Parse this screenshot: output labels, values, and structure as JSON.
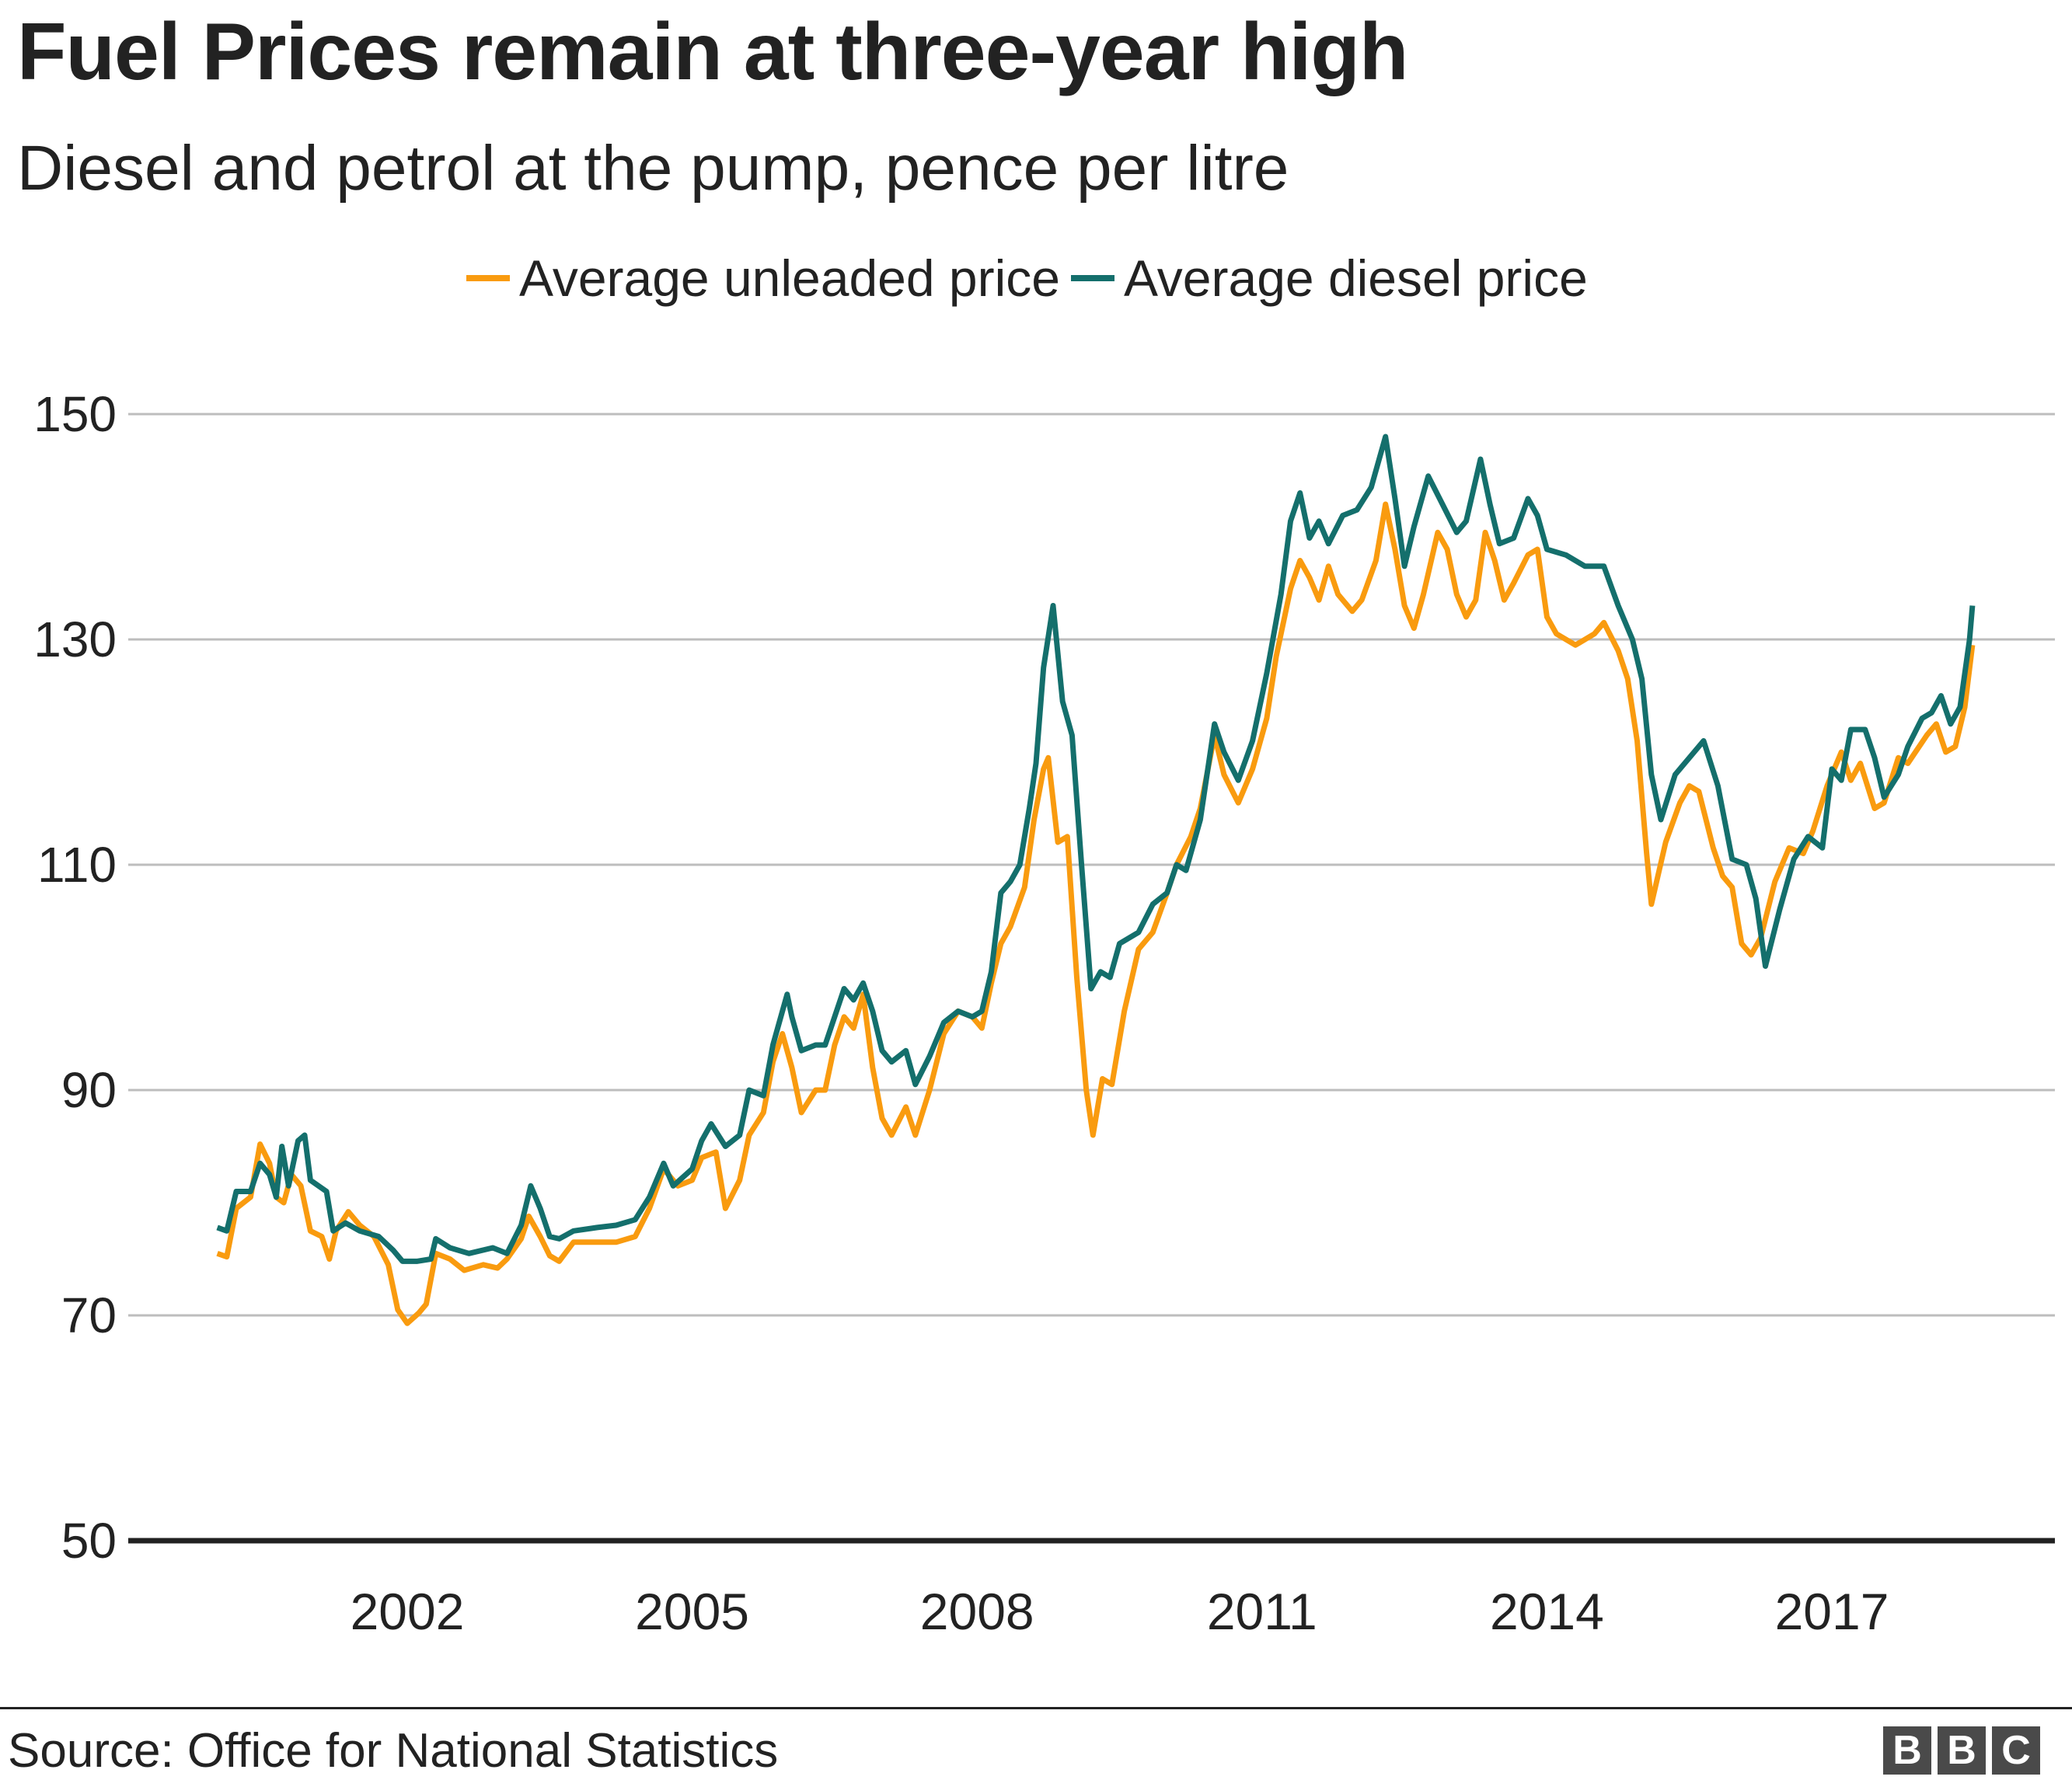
{
  "header": {
    "title": "Fuel Prices remain at three-year high",
    "subtitle": "Diesel and petrol at the pump, pence per litre"
  },
  "footer": {
    "source": "Source: Office for National Statistics",
    "logo": "BBC"
  },
  "colors": {
    "unleaded": "#F99B0F",
    "diesel": "#146F6C",
    "grid": "#BDBDBD",
    "baseline": "#222222"
  },
  "chart_data": {
    "type": "line",
    "title": "Fuel Prices remain at three-year high",
    "subtitle": "Diesel and petrol at the pump, pence per litre",
    "xlabel": "",
    "ylabel": "",
    "xlim": [
      2000,
      2018.5
    ],
    "ylim": [
      50,
      150
    ],
    "yticks": [
      50,
      70,
      90,
      110,
      130,
      150
    ],
    "xticks": [
      2002,
      2005,
      2008,
      2011,
      2014,
      2017
    ],
    "grid": "horizontal",
    "legend": "top",
    "series": [
      {
        "name": "Average unleaded price",
        "color": "#F99B0F",
        "x": [
          2000.0,
          2000.1,
          2000.2,
          2000.35,
          2000.45,
          2000.55,
          2000.62,
          2000.7,
          2000.78,
          2000.88,
          2000.98,
          2001.1,
          2001.18,
          2001.25,
          2001.38,
          2001.5,
          2001.65,
          2001.8,
          2001.9,
          2002.0,
          2002.12,
          2002.2,
          2002.3,
          2002.45,
          2002.6,
          2002.8,
          2002.95,
          2003.05,
          2003.2,
          2003.28,
          2003.4,
          2003.5,
          2003.6,
          2003.75,
          2004.0,
          2004.2,
          2004.4,
          2004.55,
          2004.7,
          2004.85,
          2005.0,
          2005.1,
          2005.25,
          2005.35,
          2005.5,
          2005.6,
          2005.75,
          2005.85,
          2005.95,
          2006.05,
          2006.15,
          2006.3,
          2006.4,
          2006.5,
          2006.6,
          2006.7,
          2006.8,
          2006.9,
          2007.0,
          2007.1,
          2007.25,
          2007.35,
          2007.5,
          2007.65,
          2007.8,
          2007.95,
          2008.05,
          2008.15,
          2008.25,
          2008.35,
          2008.5,
          2008.6,
          2008.7,
          2008.75,
          2008.85,
          2008.95,
          2009.05,
          2009.15,
          2009.22,
          2009.32,
          2009.42,
          2009.55,
          2009.7,
          2009.85,
          2010.0,
          2010.1,
          2010.25,
          2010.35,
          2010.5,
          2010.6,
          2010.75,
          2010.9,
          2011.05,
          2011.15,
          2011.3,
          2011.4,
          2011.5,
          2011.6,
          2011.7,
          2011.8,
          2011.95,
          2012.05,
          2012.2,
          2012.3,
          2012.4,
          2012.5,
          2012.6,
          2012.7,
          2012.85,
          2012.95,
          2013.05,
          2013.15,
          2013.25,
          2013.35,
          2013.45,
          2013.55,
          2013.65,
          2013.8,
          2013.9,
          2014.0,
          2014.1,
          2014.3,
          2014.5,
          2014.6,
          2014.75,
          2014.85,
          2014.95,
          2015.05,
          2015.1,
          2015.25,
          2015.4,
          2015.5,
          2015.6,
          2015.75,
          2015.85,
          2015.95,
          2016.05,
          2016.15,
          2016.25,
          2016.4,
          2016.55,
          2016.7,
          2016.8,
          2016.95,
          2017.1,
          2017.2,
          2017.3,
          2017.45,
          2017.55,
          2017.7,
          2017.8,
          2018.0,
          2018.1,
          2018.2,
          2018.3,
          2018.4,
          2018.48
        ],
        "values": [
          75.5,
          75.2,
          79.5,
          80.5,
          85.2,
          83.5,
          80.5,
          80.0,
          82.5,
          81.5,
          77.5,
          77.0,
          75.0,
          77.5,
          79.2,
          78.0,
          77.0,
          74.5,
          70.5,
          69.3,
          70.2,
          71.0,
          75.5,
          75.0,
          74.0,
          74.5,
          74.2,
          75.0,
          76.8,
          78.8,
          77.0,
          75.3,
          74.8,
          76.5,
          76.5,
          76.5,
          77.0,
          79.5,
          83.0,
          81.5,
          82.0,
          84.0,
          84.5,
          79.5,
          82.0,
          86.0,
          88.0,
          92.5,
          95.0,
          92.0,
          88.0,
          90.0,
          90.0,
          94.0,
          96.5,
          95.5,
          98.5,
          92.0,
          87.5,
          86.0,
          88.5,
          86.0,
          90.0,
          95.0,
          97.0,
          96.5,
          95.5,
          99.5,
          103.0,
          104.5,
          108.0,
          114.0,
          118.5,
          119.5,
          112.0,
          112.5,
          100.0,
          90.0,
          86.0,
          91.0,
          90.5,
          97.0,
          102.5,
          104.0,
          107.5,
          110.0,
          112.5,
          115.0,
          121.5,
          118.0,
          115.5,
          118.5,
          123.0,
          128.5,
          134.5,
          137.0,
          135.5,
          133.5,
          136.5,
          134.0,
          132.5,
          133.5,
          137.0,
          142.0,
          138.0,
          133.0,
          131.0,
          134.0,
          139.5,
          138.0,
          134.0,
          132.0,
          133.5,
          139.5,
          137.0,
          133.5,
          135.0,
          137.5,
          138.0,
          132.0,
          130.5,
          129.5,
          130.5,
          131.5,
          129.0,
          126.5,
          121.0,
          111.0,
          106.5,
          112.0,
          115.5,
          117.0,
          116.5,
          111.5,
          109.0,
          108.0,
          103.0,
          102.0,
          103.5,
          108.5,
          111.5,
          111.0,
          113.0,
          117.0,
          120.0,
          117.5,
          119.0,
          115.0,
          115.5,
          119.5,
          119.0,
          121.5,
          122.5,
          120.0,
          120.5,
          124.0,
          129.5
        ]
      },
      {
        "name": "Average diesel price",
        "color": "#146F6C",
        "x": [
          2000.0,
          2000.1,
          2000.2,
          2000.35,
          2000.45,
          2000.55,
          2000.62,
          2000.68,
          2000.75,
          2000.85,
          2000.92,
          2000.98,
          2001.15,
          2001.22,
          2001.35,
          2001.5,
          2001.7,
          2001.85,
          2001.95,
          2002.1,
          2002.25,
          2002.3,
          2002.45,
          2002.65,
          2002.9,
          2003.05,
          2003.2,
          2003.3,
          2003.4,
          2003.5,
          2003.6,
          2003.75,
          2004.0,
          2004.2,
          2004.4,
          2004.55,
          2004.7,
          2004.8,
          2005.0,
          2005.1,
          2005.2,
          2005.35,
          2005.5,
          2005.6,
          2005.75,
          2005.85,
          2005.95,
          2006.0,
          2006.05,
          2006.15,
          2006.3,
          2006.4,
          2006.5,
          2006.6,
          2006.7,
          2006.8,
          2006.9,
          2007.0,
          2007.1,
          2007.25,
          2007.35,
          2007.5,
          2007.65,
          2007.8,
          2007.95,
          2008.05,
          2008.15,
          2008.25,
          2008.35,
          2008.45,
          2008.55,
          2008.62,
          2008.7,
          2008.8,
          2008.9,
          2009.0,
          2009.1,
          2009.2,
          2009.3,
          2009.4,
          2009.5,
          2009.7,
          2009.85,
          2010.0,
          2010.1,
          2010.2,
          2010.35,
          2010.5,
          2010.6,
          2010.75,
          2010.9,
          2011.05,
          2011.2,
          2011.3,
          2011.4,
          2011.5,
          2011.6,
          2011.7,
          2011.85,
          2012.0,
          2012.15,
          2012.3,
          2012.4,
          2012.5,
          2012.6,
          2012.75,
          2012.9,
          2013.05,
          2013.15,
          2013.3,
          2013.4,
          2013.5,
          2013.65,
          2013.8,
          2013.9,
          2014.0,
          2014.2,
          2014.4,
          2014.6,
          2014.75,
          2014.9,
          2015.0,
          2015.1,
          2015.2,
          2015.35,
          2015.5,
          2015.65,
          2015.8,
          2015.95,
          2016.1,
          2016.2,
          2016.3,
          2016.45,
          2016.6,
          2016.75,
          2016.9,
          2017.0,
          2017.1,
          2017.2,
          2017.35,
          2017.45,
          2017.55,
          2017.7,
          2017.8,
          2017.95,
          2018.05,
          2018.15,
          2018.25,
          2018.35,
          2018.45,
          2018.48
        ],
        "values": [
          77.8,
          77.5,
          81.0,
          81.0,
          83.5,
          82.5,
          80.5,
          85.0,
          81.5,
          85.5,
          86.0,
          82.0,
          81.0,
          77.5,
          78.2,
          77.5,
          77.0,
          75.8,
          74.8,
          74.8,
          75.0,
          76.8,
          76.0,
          75.5,
          76.0,
          75.5,
          78.0,
          81.5,
          79.5,
          77.0,
          76.8,
          77.5,
          77.8,
          78.0,
          78.5,
          80.5,
          83.5,
          81.5,
          83.0,
          85.5,
          87.0,
          85.0,
          86.0,
          90.0,
          89.5,
          94.0,
          97.0,
          98.5,
          96.5,
          93.5,
          94.0,
          94.0,
          96.5,
          99.0,
          98.0,
          99.5,
          97.0,
          93.5,
          92.5,
          93.5,
          90.5,
          93.0,
          96.0,
          97.0,
          96.5,
          97.0,
          100.5,
          107.5,
          108.5,
          110.0,
          115.0,
          119.0,
          127.5,
          133.0,
          124.5,
          121.5,
          110.0,
          99.0,
          100.5,
          100.0,
          103.0,
          104.0,
          106.5,
          107.5,
          110.0,
          109.5,
          114.0,
          122.5,
          120.0,
          117.5,
          121.0,
          127.0,
          134.0,
          140.5,
          143.0,
          139.0,
          140.5,
          138.5,
          141.0,
          141.5,
          143.5,
          148.0,
          142.5,
          136.5,
          140.0,
          144.5,
          142.0,
          139.5,
          140.5,
          146.0,
          142.0,
          138.5,
          139.0,
          142.5,
          141.0,
          138.0,
          137.5,
          136.5,
          136.5,
          133.0,
          130.0,
          126.5,
          118.0,
          114.0,
          118.0,
          119.5,
          121.0,
          117.0,
          110.5,
          110.0,
          107.0,
          101.0,
          106.0,
          110.5,
          112.5,
          111.5,
          118.5,
          117.5,
          122.0,
          122.0,
          119.5,
          116.0,
          118.0,
          120.5,
          123.0,
          123.5,
          125.0,
          122.5,
          124.0,
          130.0,
          133.0
        ]
      }
    ]
  }
}
